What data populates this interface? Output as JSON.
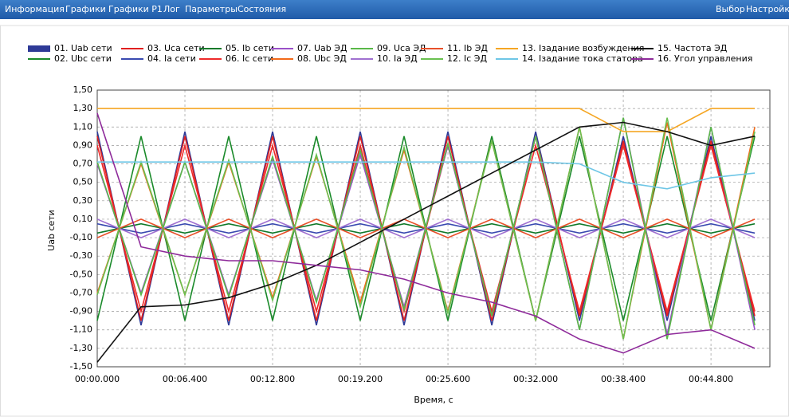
{
  "menu": {
    "left": [
      "Информация",
      "Графики",
      "Графики P1",
      "Лог",
      "Параметры",
      "Состояния"
    ],
    "right": [
      "Выбор",
      "Настройки"
    ]
  },
  "chart_data": {
    "type": "line",
    "y_label": "Uab сети",
    "x_label": "Время, с",
    "xlim": [
      0,
      49.1
    ],
    "ylim": [
      -1.5,
      1.5
    ],
    "grid": true,
    "xticks": [
      {
        "value": 0,
        "label": "00:00.000"
      },
      {
        "value": 6.4,
        "label": "00:06.400"
      },
      {
        "value": 12.8,
        "label": "00:12.800"
      },
      {
        "value": 19.2,
        "label": "00:19.200"
      },
      {
        "value": 25.6,
        "label": "00:25.600"
      },
      {
        "value": 32,
        "label": "00:32.000"
      },
      {
        "value": 38.4,
        "label": "00:38.400"
      },
      {
        "value": 44.8,
        "label": "00:44.800"
      }
    ],
    "yticks": [
      {
        "value": 1.5,
        "label": "1,50"
      },
      {
        "value": 1.3,
        "label": "1,30"
      },
      {
        "value": 1.1,
        "label": "1,10"
      },
      {
        "value": 0.9,
        "label": "0,90"
      },
      {
        "value": 0.7,
        "label": "0,70"
      },
      {
        "value": 0.5,
        "label": "0,50"
      },
      {
        "value": 0.3,
        "label": "0,30"
      },
      {
        "value": 0.1,
        "label": "0,10"
      },
      {
        "value": -0.1,
        "label": "-0,10"
      },
      {
        "value": -0.3,
        "label": "-0,30"
      },
      {
        "value": -0.5,
        "label": "-0,50"
      },
      {
        "value": -0.7,
        "label": "-0,70"
      },
      {
        "value": -0.9,
        "label": "-0,90"
      },
      {
        "value": -1.1,
        "label": "-1,10"
      },
      {
        "value": -1.3,
        "label": "-1,30"
      },
      {
        "value": -1.5,
        "label": "-1,50"
      }
    ],
    "x": [
      0,
      3.2,
      6.4,
      9.6,
      12.8,
      16,
      19.2,
      22.4,
      25.6,
      28.8,
      32,
      35.2,
      38.4,
      41.6,
      44.8,
      48
    ],
    "series": [
      {
        "name": "01. Uab сети",
        "color": "#2e3a97",
        "values": [
          1.05,
          -1.05,
          1.05,
          -1.05,
          1.05,
          -1.05,
          1.05,
          -1.05,
          1.05,
          -1.05,
          1.05,
          -1.0,
          1.0,
          -1.0,
          1.0,
          -1.0
        ]
      },
      {
        "name": "02. Ubc сети",
        "color": "#1a8a2a",
        "values": [
          -1.0,
          1.0,
          -1.0,
          1.0,
          -1.0,
          1.0,
          -1.0,
          1.0,
          -1.0,
          1.0,
          -1.0,
          1.0,
          -1.0,
          1.0,
          -1.0,
          1.0
        ]
      },
      {
        "name": "03. Uca сети",
        "color": "#e02020",
        "values": [
          1.0,
          -1.0,
          1.0,
          -1.0,
          1.0,
          -1.0,
          1.0,
          -1.0,
          1.0,
          -1.0,
          1.0,
          -0.95,
          0.95,
          -0.95,
          0.95,
          -0.95
        ]
      },
      {
        "name": "04. Ia сети",
        "color": "#3a4ab0",
        "values": [
          0.05,
          -0.05,
          0.05,
          -0.05,
          0.05,
          -0.05,
          0.05,
          -0.05,
          0.05,
          -0.05,
          0.05,
          -0.05,
          0.05,
          -0.05,
          0.05,
          -0.05
        ]
      },
      {
        "name": "05. Ib сети",
        "color": "#117a2a",
        "values": [
          -0.05,
          0.05,
          -0.05,
          0.05,
          -0.05,
          0.05,
          -0.05,
          0.05,
          -0.05,
          0.05,
          -0.05,
          0.05,
          -0.05,
          0.05,
          -0.05,
          0.05
        ]
      },
      {
        "name": "06. Ic сети",
        "color": "#ee2a2a",
        "values": [
          0.9,
          -0.9,
          0.9,
          -0.9,
          0.9,
          -0.9,
          0.9,
          -0.9,
          0.9,
          -0.9,
          0.9,
          -0.9,
          0.9,
          -0.9,
          0.9,
          -0.9
        ]
      },
      {
        "name": "07. Uab ЭД",
        "color": "#9a50c8",
        "values": [
          0.7,
          -0.7,
          0.72,
          -0.72,
          0.75,
          -0.78,
          0.8,
          -0.85,
          0.9,
          -0.95,
          1.0,
          -1.1,
          1.2,
          -1.15,
          1.1,
          -1.1
        ]
      },
      {
        "name": "08. Ubc ЭД",
        "color": "#f26a1a",
        "values": [
          -0.7,
          0.7,
          -0.72,
          0.72,
          -0.75,
          0.78,
          -0.8,
          0.85,
          -0.9,
          0.95,
          -1.0,
          1.1,
          -1.2,
          1.15,
          -1.1,
          1.1
        ]
      },
      {
        "name": "09. Uca ЭД",
        "color": "#59b848",
        "values": [
          0.72,
          -0.72,
          0.72,
          -0.74,
          0.78,
          -0.8,
          0.85,
          -0.88,
          0.92,
          -0.95,
          1.0,
          -1.1,
          1.2,
          -1.2,
          1.1,
          -1.05
        ]
      },
      {
        "name": "10. Ia ЭД",
        "color": "#a070d0",
        "values": [
          0.1,
          -0.1,
          0.1,
          -0.1,
          0.1,
          -0.1,
          0.1,
          -0.1,
          0.1,
          -0.1,
          0.1,
          -0.1,
          0.1,
          -0.1,
          0.1,
          -0.1
        ]
      },
      {
        "name": "11. Ib ЭД",
        "color": "#e8502a",
        "values": [
          -0.1,
          0.1,
          -0.1,
          0.1,
          -0.1,
          0.1,
          -0.1,
          0.1,
          -0.1,
          0.1,
          -0.1,
          0.1,
          -0.1,
          0.1,
          -0.1,
          0.1
        ]
      },
      {
        "name": "12. Ic ЭД",
        "color": "#6ac050",
        "values": [
          -0.72,
          0.72,
          -0.72,
          0.74,
          -0.78,
          0.8,
          -0.85,
          0.88,
          -0.92,
          0.95,
          -1.0,
          1.1,
          -1.2,
          1.2,
          -1.1,
          1.05
        ]
      },
      {
        "name": "13. Iзадание возбуждения",
        "color": "#f5a623",
        "values": [
          1.3,
          1.3,
          1.3,
          1.3,
          1.3,
          1.3,
          1.3,
          1.3,
          1.3,
          1.3,
          1.3,
          1.3,
          1.05,
          1.05,
          1.3,
          1.3
        ]
      },
      {
        "name": "14. Iзадание тока статора",
        "color": "#6ec6e6",
        "values": [
          0.72,
          0.72,
          0.72,
          0.72,
          0.72,
          0.72,
          0.72,
          0.72,
          0.72,
          0.72,
          0.72,
          0.7,
          0.5,
          0.43,
          0.55,
          0.6
        ]
      },
      {
        "name": "15. Частота ЭД",
        "color": "#111111",
        "values": [
          -1.45,
          -0.85,
          -0.83,
          -0.75,
          -0.6,
          -0.4,
          -0.15,
          0.1,
          0.35,
          0.6,
          0.85,
          1.1,
          1.15,
          1.05,
          0.9,
          1.0
        ]
      },
      {
        "name": "16. Угол управления",
        "color": "#8e2a9a",
        "values": [
          1.25,
          -0.2,
          -0.3,
          -0.35,
          -0.35,
          -0.4,
          -0.45,
          -0.55,
          -0.7,
          -0.8,
          -0.95,
          -1.2,
          -1.35,
          -1.15,
          -1.1,
          -1.3
        ]
      }
    ]
  }
}
